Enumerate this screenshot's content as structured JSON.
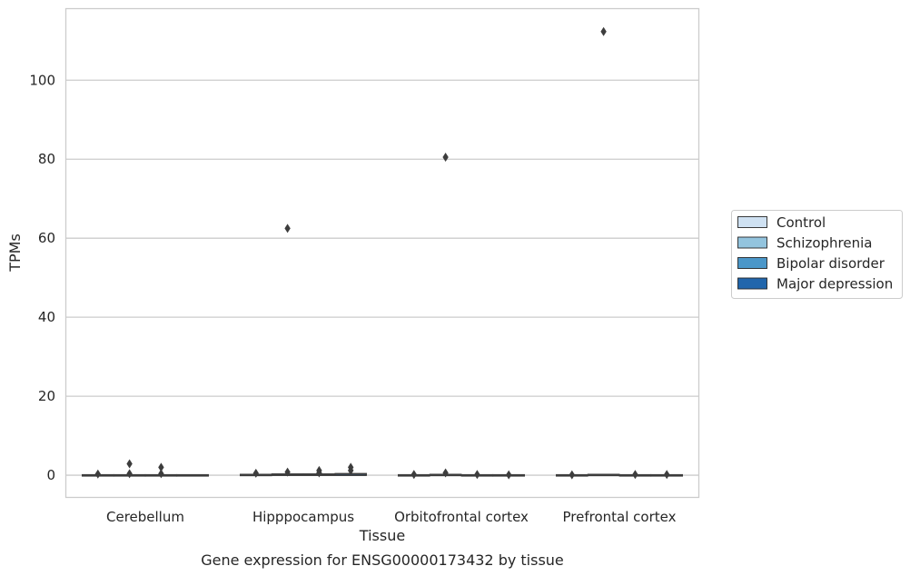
{
  "chart_data": {
    "type": "box",
    "title": "",
    "caption": "Gene expression for ENSG00000173432 by tissue",
    "xlabel": "Tissue",
    "ylabel": "TPMs",
    "ylim": [
      -5.5,
      118
    ],
    "yticks": [
      0,
      20,
      40,
      60,
      80,
      100
    ],
    "grid": true,
    "legend_position": "right",
    "categories": [
      "Cerebellum",
      "Hipppocampus",
      "Orbitofrontal cortex",
      "Prefrontal cortex"
    ],
    "series": [
      {
        "name": "Control",
        "color": "#cfe1f2",
        "boxes": [
          {
            "q1": 0,
            "median": 0,
            "q3": 0.1,
            "whisker_low": 0,
            "whisker_high": 0.2,
            "outliers": [
              0.3
            ]
          },
          {
            "q1": 0,
            "median": 0,
            "q3": 0.2,
            "whisker_low": 0,
            "whisker_high": 0.3,
            "outliers": [
              0.5
            ]
          },
          {
            "q1": 0,
            "median": 0,
            "q3": 0.1,
            "whisker_low": 0,
            "whisker_high": 0.2,
            "outliers": [
              0.2
            ]
          },
          {
            "q1": 0,
            "median": 0,
            "q3": 0.1,
            "whisker_low": 0,
            "whisker_high": 0.2,
            "outliers": [
              0.1
            ]
          }
        ]
      },
      {
        "name": "Schizophrenia",
        "color": "#93c4de",
        "boxes": [
          {
            "q1": 0,
            "median": 0,
            "q3": 0.1,
            "whisker_low": 0,
            "whisker_high": 0.2,
            "outliers": [
              2.9,
              0.4
            ]
          },
          {
            "q1": 0,
            "median": 0,
            "q3": 0.3,
            "whisker_low": 0,
            "whisker_high": 0.4,
            "outliers": [
              0.8,
              62.5
            ]
          },
          {
            "q1": 0,
            "median": 0,
            "q3": 0.2,
            "whisker_low": 0,
            "whisker_high": 0.3,
            "outliers": [
              0.6,
              80.5
            ]
          },
          {
            "q1": 0,
            "median": 0,
            "q3": 0.2,
            "whisker_low": 0,
            "whisker_high": 0.2,
            "outliers": [
              112.3
            ]
          }
        ]
      },
      {
        "name": "Bipolar disorder",
        "color": "#4b97c9",
        "boxes": [
          {
            "q1": 0,
            "median": 0,
            "q3": 0.1,
            "whisker_low": 0,
            "whisker_high": 0.2,
            "outliers": [
              2.0,
              0.4
            ]
          },
          {
            "q1": 0,
            "median": 0,
            "q3": 0.3,
            "whisker_low": 0,
            "whisker_high": 0.4,
            "outliers": [
              1.2,
              0.6
            ]
          },
          {
            "q1": 0,
            "median": 0,
            "q3": 0.1,
            "whisker_low": 0,
            "whisker_high": 0.2,
            "outliers": [
              0.2
            ]
          },
          {
            "q1": 0,
            "median": 0,
            "q3": 0.1,
            "whisker_low": 0,
            "whisker_high": 0.2,
            "outliers": [
              0.2
            ]
          }
        ]
      },
      {
        "name": "Major depression",
        "color": "#2166ac",
        "boxes": [
          {
            "q1": 0,
            "median": 0,
            "q3": 0.1,
            "whisker_low": 0,
            "whisker_high": 0.2,
            "outliers": []
          },
          {
            "q1": 0,
            "median": 0,
            "q3": 0.4,
            "whisker_low": 0,
            "whisker_high": 0.6,
            "outliers": [
              2.0,
              1.2
            ]
          },
          {
            "q1": 0,
            "median": 0,
            "q3": 0.1,
            "whisker_low": 0,
            "whisker_high": 0.1,
            "outliers": [
              0.1
            ]
          },
          {
            "q1": 0,
            "median": 0,
            "q3": 0.1,
            "whisker_low": 0,
            "whisker_high": 0.2,
            "outliers": [
              0.2
            ]
          }
        ]
      }
    ]
  }
}
